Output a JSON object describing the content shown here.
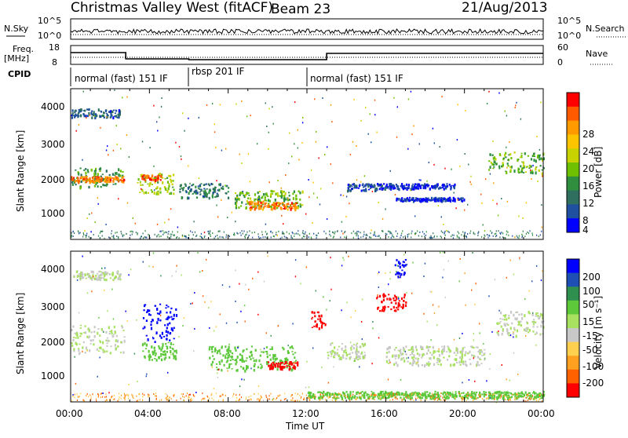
{
  "header": {
    "title": "Christmas Valley West (fitACF)",
    "beam": "Beam 23",
    "date": "21/Aug/2013"
  },
  "top_panel": {
    "left_label": "N.Sky",
    "left_ticks": [
      "10^5",
      "10^0"
    ],
    "right_label": "N.Search",
    "right_ticks": [
      "10^5",
      "10^0"
    ]
  },
  "freq_panel": {
    "left_label_line1": "Freq.",
    "left_label_line2": "[MHz]",
    "left_ticks": [
      "18",
      "8"
    ],
    "right_label": "Nave",
    "right_ticks": [
      "60",
      "0"
    ]
  },
  "cpid": {
    "label": "CPID",
    "segments": [
      {
        "label": "normal (fast) 151 IF",
        "start_hour": 0.0,
        "end_hour": 6.0
      },
      {
        "label": "rbsp 201 IF",
        "start_hour": 6.0,
        "end_hour": 12.0
      },
      {
        "label": "normal (fast) 151 IF",
        "start_hour": 12.0,
        "end_hour": 24.0
      }
    ]
  },
  "x_axis": {
    "label": "Time UT",
    "ticks": [
      "00:00",
      "04:00",
      "08:00",
      "12:00",
      "16:00",
      "20:00",
      "00:00"
    ]
  },
  "power_panel": {
    "ylabel": "Slant Range [km]",
    "yticks": [
      "4000",
      "3000",
      "2000",
      "1000"
    ],
    "colorbar_label": "Power [dB]",
    "colorbar_ticks": [
      "28",
      "24",
      "20",
      "16",
      "12",
      "8",
      "4"
    ],
    "colorbar_colors": [
      "#ff0000",
      "#ff5a00",
      "#ff9a00",
      "#ffc400",
      "#c8d200",
      "#6fc000",
      "#2f8f3f",
      "#2f6f5f",
      "#1f4f9f",
      "#0000ff"
    ]
  },
  "velocity_panel": {
    "ylabel": "Slant Range [km]",
    "yticks": [
      "4000",
      "3000",
      "2000",
      "1000"
    ],
    "colorbar_label": "Velocity [m s⁻¹]",
    "colorbar_ticks": [
      "200",
      "100",
      "50",
      "15",
      "-15",
      "-50",
      "-100",
      "-200"
    ],
    "colorbar_colors": [
      "#0000ff",
      "#1d4fb5",
      "#2f8f4f",
      "#5cc83a",
      "#a8e060",
      "#c8c8c8",
      "#ffd050",
      "#ffa020",
      "#ff6000",
      "#ff0000"
    ]
  },
  "chart_data": {
    "type": "heatmap",
    "title": "Christmas Valley West (fitACF)",
    "xlabel": "Time UT",
    "ylabel": "Slant Range [km]",
    "xlim": [
      0,
      24
    ],
    "ylim": [
      180,
      4500
    ],
    "power_features": [
      {
        "t0": 0.0,
        "t1": 2.7,
        "r0": 1700,
        "r1": 2250,
        "value": 12
      },
      {
        "t0": 0.0,
        "t1": 2.7,
        "r0": 1850,
        "r1": 2000,
        "value": 24
      },
      {
        "t0": 0.0,
        "t1": 2.5,
        "r0": 3700,
        "r1": 3950,
        "value": 8
      },
      {
        "t0": 3.3,
        "t1": 5.2,
        "r0": 1500,
        "r1": 2100,
        "value": 16
      },
      {
        "t0": 3.6,
        "t1": 4.6,
        "r0": 1900,
        "r1": 2050,
        "value": 26
      },
      {
        "t0": 5.5,
        "t1": 8.0,
        "r0": 1400,
        "r1": 1800,
        "value": 10
      },
      {
        "t0": 8.3,
        "t1": 11.8,
        "r0": 1100,
        "r1": 1600,
        "value": 14
      },
      {
        "t0": 9.0,
        "t1": 11.5,
        "r0": 1050,
        "r1": 1300,
        "value": 24
      },
      {
        "t0": 14.0,
        "t1": 16.0,
        "r0": 1600,
        "r1": 1800,
        "value": 6
      },
      {
        "t0": 16.0,
        "t1": 19.5,
        "r0": 1650,
        "r1": 1800,
        "value": 5
      },
      {
        "t0": 16.5,
        "t1": 20.0,
        "r0": 1300,
        "r1": 1400,
        "value": 5
      },
      {
        "t0": 21.2,
        "t1": 24.0,
        "r0": 2100,
        "r1": 2700,
        "value": 14
      }
    ],
    "velocity_features": [
      {
        "t0": 0.0,
        "t1": 2.7,
        "r0": 1600,
        "r1": 2400,
        "value": 0
      },
      {
        "t0": 0.0,
        "t1": 2.5,
        "r0": 3700,
        "r1": 3950,
        "value": 0
      },
      {
        "t0": 3.6,
        "t1": 5.4,
        "r0": 1900,
        "r1": 3000,
        "value": 200
      },
      {
        "t0": 3.6,
        "t1": 5.4,
        "r0": 1400,
        "r1": 1900,
        "value": 50
      },
      {
        "t0": 7.0,
        "t1": 11.5,
        "r0": 1100,
        "r1": 1800,
        "value": 50
      },
      {
        "t0": 10.0,
        "t1": 11.5,
        "r0": 1150,
        "r1": 1350,
        "value": -200
      },
      {
        "t0": 12.2,
        "t1": 12.9,
        "r0": 2300,
        "r1": 2800,
        "value": -200
      },
      {
        "t0": 15.5,
        "t1": 17.0,
        "r0": 2800,
        "r1": 3300,
        "value": -200
      },
      {
        "t0": 16.3,
        "t1": 17.0,
        "r0": 3800,
        "r1": 4300,
        "value": 200
      },
      {
        "t0": 13.0,
        "t1": 15.0,
        "r0": 1400,
        "r1": 1900,
        "value": 0
      },
      {
        "t0": 16.0,
        "t1": 21.0,
        "r0": 1250,
        "r1": 1800,
        "value": 0
      },
      {
        "t0": 21.5,
        "t1": 24.0,
        "r0": 2100,
        "r1": 2800,
        "value": 0
      },
      {
        "t0": 12.0,
        "t1": 24.0,
        "r0": 300,
        "r1": 500,
        "value": 50
      }
    ]
  }
}
